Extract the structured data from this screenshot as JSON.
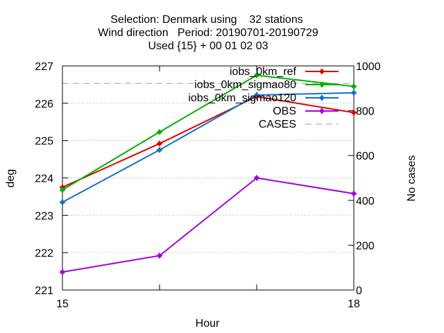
{
  "chart_data": {
    "type": "line",
    "title_lines": [
      "Selection: Denmark using    32 stations",
      "Wind direction   Period: 20190701-20190729",
      "Used {15} + 00 01 02 03"
    ],
    "xlabel": "Hour",
    "ylabel": "deg",
    "y2label": "No cases",
    "x_ticks": [
      15,
      18
    ],
    "xlim": [
      15,
      18
    ],
    "ylim": [
      221,
      227
    ],
    "y_ticks": [
      221,
      222,
      223,
      224,
      225,
      226,
      227
    ],
    "y2lim": [
      0,
      1000
    ],
    "y2_ticks": [
      0,
      200,
      400,
      600,
      800,
      1000
    ],
    "grid": true,
    "legend_position": "top-right",
    "series": [
      {
        "name": "iobs_0km_ref",
        "color": "#e00000",
        "axis": "y1",
        "style": "line-points",
        "x": [
          15,
          16,
          17,
          18
        ],
        "values": [
          223.75,
          224.92,
          226.18,
          225.75
        ]
      },
      {
        "name": "iobs_0km_sigmao80",
        "color": "#00b000",
        "axis": "y1",
        "style": "line-points",
        "x": [
          15,
          16,
          17,
          18
        ],
        "values": [
          223.68,
          225.23,
          226.75,
          226.45
        ]
      },
      {
        "name": "iobs_0km_sigmao120",
        "color": "#1070d0",
        "axis": "y1",
        "style": "line-points",
        "x": [
          15,
          16,
          17,
          18
        ],
        "values": [
          223.35,
          224.75,
          226.22,
          226.28
        ]
      },
      {
        "name": "OBS",
        "color": "#a000e0",
        "axis": "y1",
        "style": "line-points",
        "x": [
          15,
          16,
          17,
          18
        ],
        "values": [
          221.48,
          221.92,
          224.0,
          223.58
        ]
      },
      {
        "name": "CASES",
        "color": "#a0a0a0",
        "axis": "y2",
        "style": "dashed",
        "x": [
          15,
          16,
          17,
          18
        ],
        "values": [
          922,
          922,
          922,
          922
        ]
      }
    ]
  }
}
